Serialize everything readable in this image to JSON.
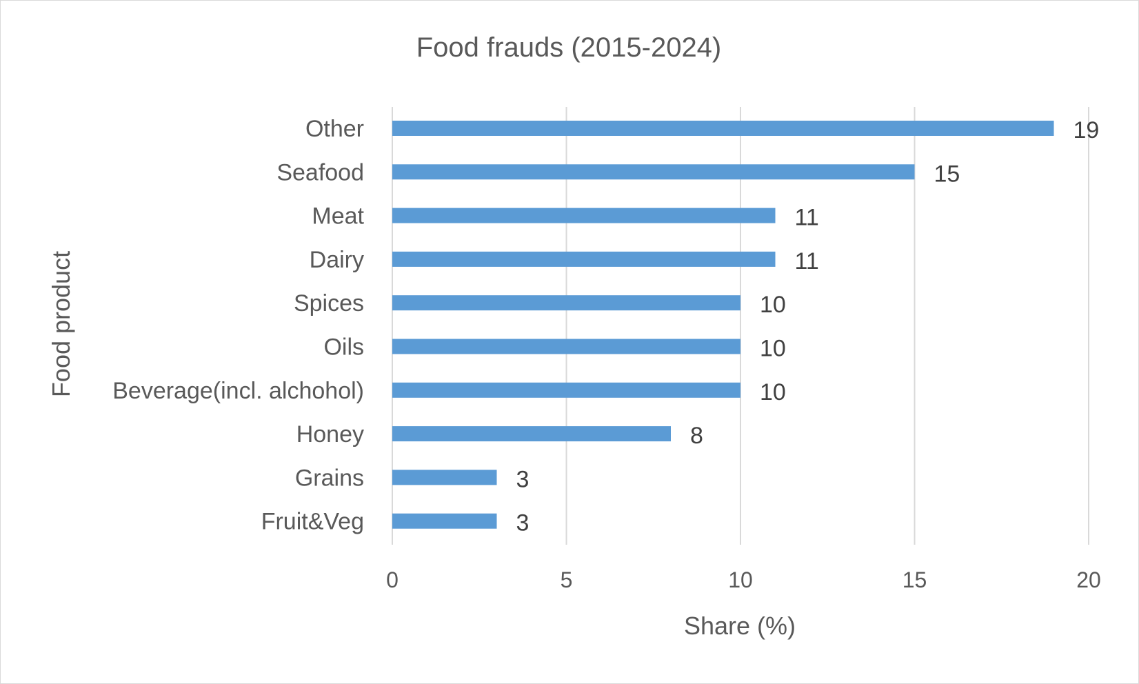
{
  "chart_data": {
    "type": "bar",
    "orientation": "horizontal",
    "title": "Food frauds (2015-2024)",
    "xlabel": "Share (%)",
    "ylabel": "Food product",
    "categories": [
      "Other",
      "Seafood",
      "Meat",
      "Dairy",
      "Spices",
      "Oils",
      "Beverage(incl. alchohol)",
      "Honey",
      "Grains",
      "Fruit&Veg"
    ],
    "values": [
      19,
      15,
      11,
      11,
      10,
      10,
      10,
      8,
      3,
      3
    ],
    "xlim": [
      0,
      20
    ],
    "xticks": [
      "0",
      "5",
      "10",
      "15",
      "20"
    ],
    "grid": "vertical",
    "data_labels": true,
    "legend": "none",
    "colors": {
      "bar": "#5b9bd5",
      "text": "#595959",
      "data_label": "#404040",
      "grid": "#d9d9d9"
    }
  }
}
